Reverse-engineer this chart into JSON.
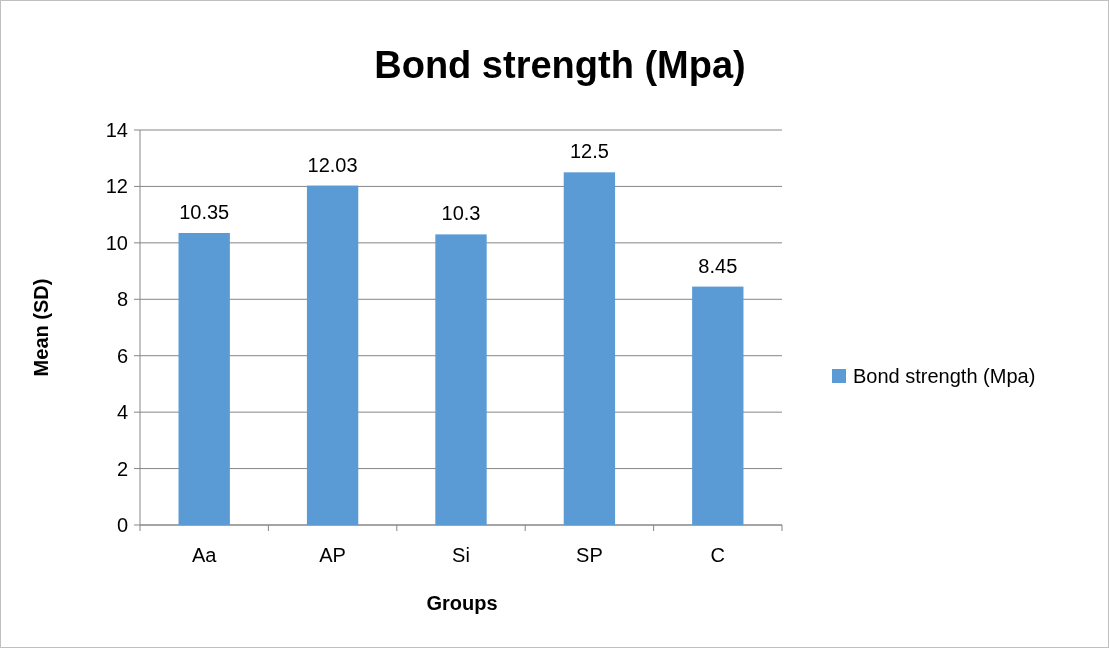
{
  "chart_data": {
    "type": "bar",
    "title": "Bond strength (Mpa)",
    "xlabel": "Groups",
    "ylabel": "Mean (SD)",
    "categories": [
      "Aa",
      "AP",
      "Si",
      "SP",
      "C"
    ],
    "series": [
      {
        "name": "Bond strength (Mpa)",
        "color": "#5b9bd5",
        "values": [
          10.35,
          12.03,
          10.3,
          12.5,
          8.45
        ]
      }
    ],
    "ylim": [
      0,
      14
    ],
    "yticks": [
      0,
      2,
      4,
      6,
      8,
      10,
      12,
      14
    ],
    "grid": "y",
    "legend": "right",
    "data_labels": true
  }
}
